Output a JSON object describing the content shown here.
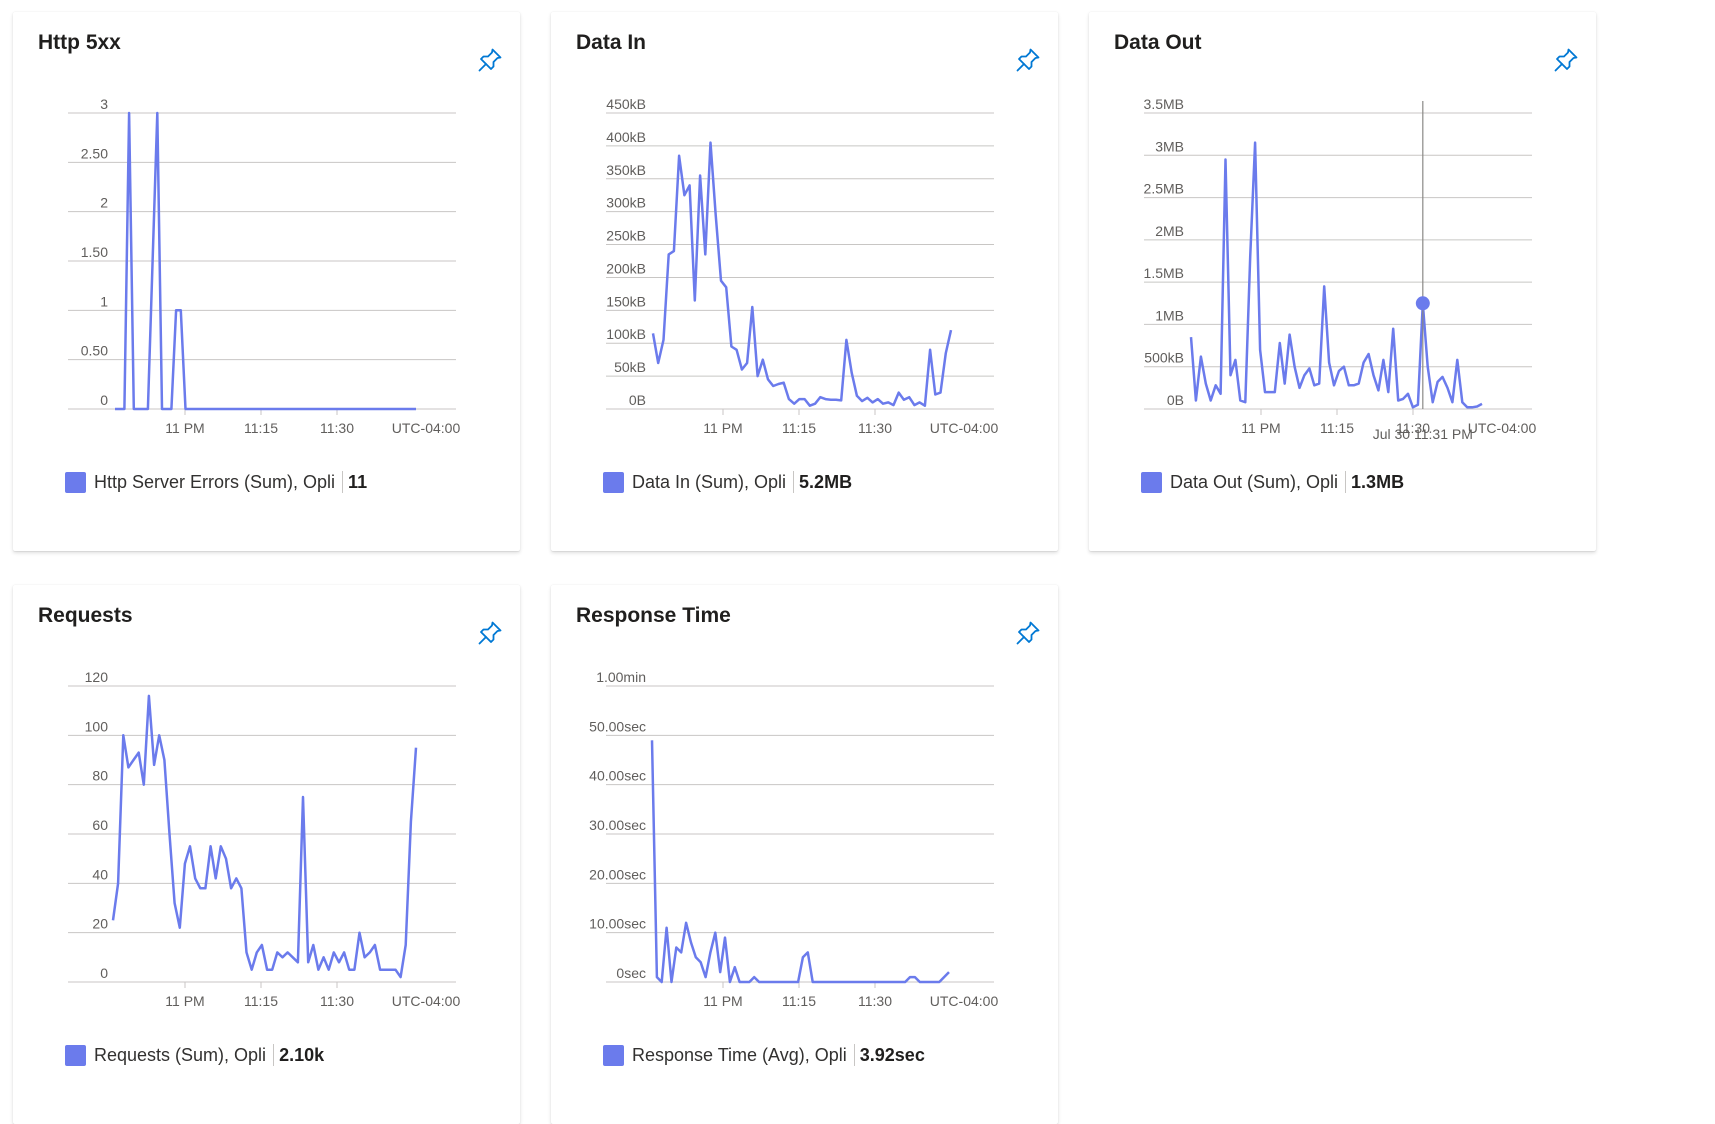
{
  "colors": {
    "series": "#6b7bec",
    "grid": "#c8c6c4",
    "pin": "#0078d4"
  },
  "cards": [
    {
      "title": "Http 5xx",
      "legend_label": "Http Server Errors (Sum), Opli",
      "legend_value": "11",
      "chart_data": {
        "type": "line",
        "y_ticks": [
          "3",
          "2.50",
          "2",
          "1.50",
          "1",
          "0.50",
          "0"
        ],
        "ylim": [
          0,
          3
        ],
        "x_ticks": [
          "11 PM",
          "11:15",
          "11:30",
          "UTC-04:00"
        ],
        "series": [
          {
            "values": [
              0,
              0,
              0,
              3,
              0,
              0,
              0,
              0,
              1.5,
              3,
              0,
              0,
              0,
              1,
              1,
              0,
              0,
              0,
              0,
              0,
              0,
              0,
              0,
              0,
              0,
              0,
              0,
              0,
              0,
              0,
              0,
              0,
              0,
              0,
              0,
              0,
              0,
              0,
              0,
              0,
              0,
              0,
              0,
              0,
              0,
              0,
              0,
              0,
              0,
              0,
              0,
              0,
              0,
              0,
              0,
              0,
              0,
              0,
              0,
              0,
              0,
              0,
              0,
              0,
              0
            ]
          }
        ]
      }
    },
    {
      "title": "Data In",
      "legend_label": "Data In (Sum), Opli",
      "legend_value": "5.2MB",
      "chart_data": {
        "type": "line",
        "y_ticks": [
          "450kB",
          "400kB",
          "350kB",
          "300kB",
          "250kB",
          "200kB",
          "150kB",
          "100kB",
          "50kB",
          "0B"
        ],
        "ylim": [
          0,
          450
        ],
        "y_unit": "kB",
        "x_ticks": [
          "11 PM",
          "11:15",
          "11:30",
          "UTC-04:00"
        ],
        "series": [
          {
            "values": [
              115,
              70,
              105,
              235,
              240,
              385,
              325,
              340,
              165,
              355,
              235,
              405,
              295,
              195,
              185,
              95,
              90,
              60,
              70,
              155,
              50,
              75,
              45,
              35,
              38,
              40,
              15,
              8,
              15,
              15,
              5,
              8,
              18,
              15,
              14,
              14,
              13,
              105,
              55,
              20,
              12,
              17,
              10,
              15,
              8,
              10,
              6,
              25,
              14,
              18,
              6,
              10,
              5,
              90,
              22,
              25,
              85,
              120
            ]
          }
        ]
      }
    },
    {
      "title": "Data Out",
      "legend_label": "Data Out (Sum), Opli",
      "legend_value": "1.3MB",
      "annotations": {
        "crosshair_label": "Jul 30 11:31 PM"
      },
      "chart_data": {
        "type": "line",
        "y_ticks": [
          "3.5MB",
          "3MB",
          "2.5MB",
          "2MB",
          "1.5MB",
          "1MB",
          "500kB",
          "0B"
        ],
        "ylim": [
          0,
          3.5
        ],
        "y_unit": "MB",
        "x_ticks": [
          "11 PM",
          "11:15",
          "11:30",
          "UTC-04:00"
        ],
        "series": [
          {
            "values": [
              0.85,
              0.1,
              0.62,
              0.3,
              0.1,
              0.28,
              0.18,
              2.95,
              0.4,
              0.58,
              0.1,
              0.08,
              1.8,
              3.15,
              0.7,
              0.2,
              0.2,
              0.2,
              0.78,
              0.3,
              0.88,
              0.5,
              0.25,
              0.4,
              0.48,
              0.28,
              0.3,
              1.45,
              0.55,
              0.28,
              0.45,
              0.5,
              0.28,
              0.28,
              0.3,
              0.55,
              0.65,
              0.4,
              0.22,
              0.58,
              0.2,
              0.95,
              0.1,
              0.12,
              0.18,
              0.02,
              0.05,
              1.25,
              0.5,
              0.08,
              0.32,
              0.38,
              0.25,
              0.08,
              0.58,
              0.08,
              0.02,
              0.02,
              0.03,
              0.06
            ]
          }
        ]
      }
    },
    {
      "title": "Requests",
      "legend_label": "Requests (Sum), Opli",
      "legend_value": "2.10k",
      "chart_data": {
        "type": "line",
        "y_ticks": [
          "120",
          "100",
          "80",
          "60",
          "40",
          "20",
          "0"
        ],
        "ylim": [
          0,
          120
        ],
        "x_ticks": [
          "11 PM",
          "11:15",
          "11:30",
          "UTC-04:00"
        ],
        "series": [
          {
            "values": [
              25,
              40,
              100,
              87,
              90,
              93,
              80,
              116,
              88,
              100,
              90,
              60,
              32,
              22,
              48,
              55,
              42,
              38,
              38,
              55,
              42,
              55,
              50,
              38,
              42,
              38,
              12,
              5,
              12,
              15,
              5,
              5,
              12,
              10,
              12,
              10,
              8,
              75,
              8,
              15,
              5,
              10,
              5,
              12,
              8,
              12,
              5,
              5,
              20,
              10,
              12,
              15,
              5,
              5,
              5,
              5,
              2,
              15,
              65,
              95
            ]
          }
        ]
      }
    },
    {
      "title": "Response Time",
      "legend_label": "Response Time (Avg), Opli",
      "legend_value": "3.92sec",
      "chart_data": {
        "type": "line",
        "y_ticks": [
          "1.00min",
          "50.00sec",
          "40.00sec",
          "30.00sec",
          "20.00sec",
          "10.00sec",
          "0sec"
        ],
        "ylim": [
          0,
          60
        ],
        "y_unit": "sec",
        "x_ticks": [
          "11 PM",
          "11:15",
          "11:30",
          "UTC-04:00"
        ],
        "series": [
          {
            "values": [
              49,
              1,
              0,
              11,
              0,
              7,
              6,
              12,
              8,
              5,
              4,
              1,
              6,
              10,
              2,
              9,
              0,
              3,
              0,
              0,
              0,
              1,
              0,
              0,
              0,
              0,
              0,
              0,
              0,
              0,
              0,
              5,
              6,
              0,
              0,
              0,
              0,
              0,
              0,
              0,
              0,
              0,
              0,
              0,
              0,
              0,
              0,
              0,
              0,
              0,
              0,
              0,
              0,
              1,
              1,
              0,
              0,
              0,
              0,
              0,
              1,
              2
            ]
          }
        ]
      }
    }
  ]
}
